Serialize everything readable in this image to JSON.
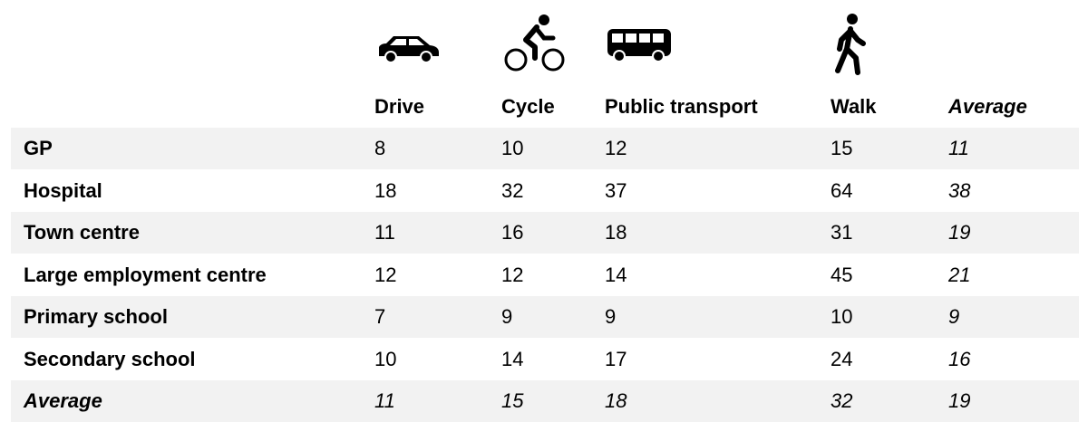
{
  "table": {
    "header": [
      "Drive",
      "Cycle",
      "Public transport",
      "Walk",
      "Average"
    ],
    "rows": [
      [
        "GP",
        8,
        10,
        12,
        15,
        11
      ],
      [
        "Hospital",
        18,
        32,
        37,
        64,
        38
      ],
      [
        "Town centre",
        11,
        16,
        18,
        31,
        19
      ],
      [
        "Large employment centre",
        12,
        12,
        14,
        45,
        21
      ],
      [
        "Primary school",
        7,
        9,
        9,
        10,
        9
      ],
      [
        "Secondary school",
        10,
        14,
        17,
        24,
        16
      ],
      [
        "Average",
        11,
        15,
        18,
        32,
        19
      ]
    ]
  }
}
